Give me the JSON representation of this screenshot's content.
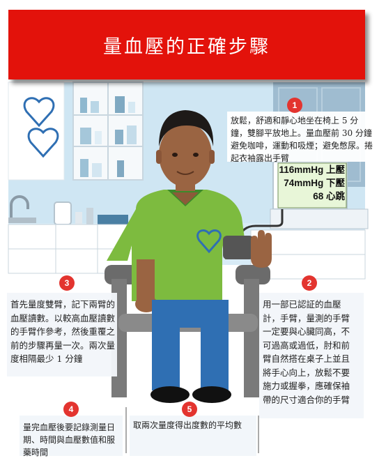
{
  "title": "量血壓的正確步驟",
  "monitor": {
    "systolic": "116mmHg 上壓",
    "diastolic": "74mmHg 下壓",
    "pulse": "68 心跳"
  },
  "steps": [
    {
      "number": "1",
      "text": "放鬆，舒適和靜心地坐在椅上 5 分鐘，雙腳平放地上。量血壓前 30 分鐘避免咖啡，運動和吸煙；避免憋尿。捲起衣袖露出手臂"
    },
    {
      "number": "2",
      "text": "用一部已認証的血壓計，手臂，量測的手臂一定要與心臟同高，不可過高或過低，肘和前臂自然搭在桌子上並且將手心向上，放鬆不要施力或握拳，應確保袖帶的尺寸適合你的手臂"
    },
    {
      "number": "3",
      "text": "首先量度雙臂，記下兩臂的血壓讀數。以較高血壓讀數的手臂作參考，然後重覆之前的步驟再量一次。兩次量度相隔最少 1 分鐘"
    },
    {
      "number": "4",
      "text": "量完血壓後要記錄測量日期、時間與血壓數值和服藥時間"
    },
    {
      "number": "5",
      "text": "取兩次量度得出度數的平均數"
    }
  ],
  "colors": {
    "banner": "#e3120b",
    "shirt": "#7dbb3f",
    "jeans": "#2f6fb3",
    "badge": "#e3342f",
    "wall": "#cfe6f3",
    "screen": "#e8f6d8"
  }
}
